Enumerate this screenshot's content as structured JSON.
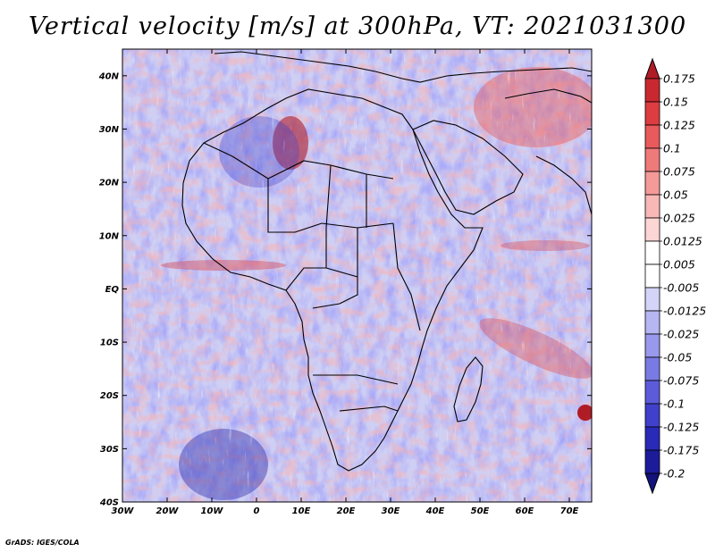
{
  "title": "Vertical velocity [m/s] at 300hPa, VT: 2021031300",
  "credit": "GrADS: IGES/COLA",
  "map": {
    "lat_labels": [
      "40N",
      "30N",
      "20N",
      "10N",
      "EQ",
      "10S",
      "20S",
      "30S",
      "40S"
    ],
    "lon_labels": [
      "30W",
      "20W",
      "10W",
      "0",
      "10E",
      "20E",
      "30E",
      "40E",
      "50E",
      "60E",
      "70E"
    ],
    "extent": {
      "lon": [
        -30,
        75
      ],
      "lat": [
        -40,
        45
      ]
    }
  },
  "colorbar": {
    "levels": [
      "0.175",
      "0.15",
      "0.125",
      "0.1",
      "0.075",
      "0.05",
      "0.025",
      "0.0125",
      "0.005",
      "-0.005",
      "-0.0125",
      "-0.025",
      "-0.05",
      "-0.075",
      "-0.1",
      "-0.125",
      "-0.175",
      "-0.2"
    ],
    "colors": [
      "#b01c26",
      "#c92830",
      "#dd3c40",
      "#e85a5c",
      "#ef7a7a",
      "#f49a98",
      "#f8b8b6",
      "#fcd6d4",
      "#ffffff",
      "#ffffff",
      "#d4d4f8",
      "#b6b6f2",
      "#9898ec",
      "#7a7ae4",
      "#5c5cda",
      "#4040cc",
      "#2a2ab8",
      "#1c1c9a",
      "#12127a"
    ]
  },
  "colors": {
    "positive": "#dd3c40",
    "negative": "#4040cc",
    "background_field": "#d9d9f5"
  }
}
